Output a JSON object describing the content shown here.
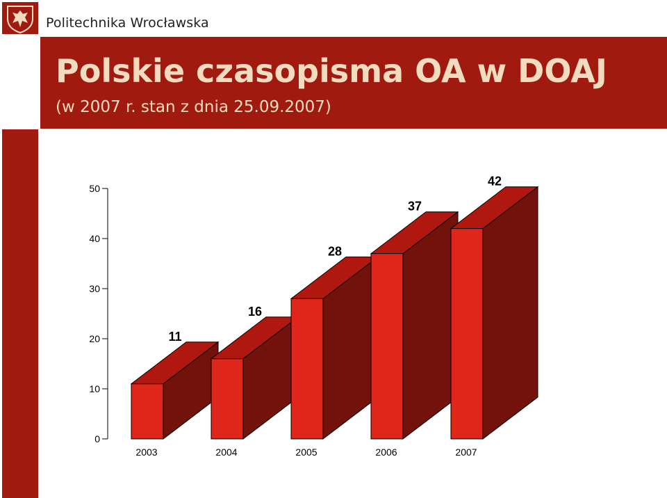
{
  "header": {
    "brand": "Politechnika Wrocławska",
    "title": "Polskie czasopisma OA w DOAJ",
    "subtitle": "(w 2007 r. stan z dnia 25.09.2007)"
  },
  "colors": {
    "brand_red": "#a01a10",
    "title_text": "#f2dcc0",
    "bar_front": "#e0261a",
    "bar_top": "#b0180f",
    "bar_side": "#72120b"
  },
  "chart_data": {
    "type": "bar",
    "style": "3d",
    "categories": [
      "2003",
      "2004",
      "2005",
      "2006",
      "2007"
    ],
    "values": [
      11,
      16,
      28,
      37,
      42
    ],
    "data_labels": [
      "11",
      "16",
      "28",
      "37",
      "42"
    ],
    "y_ticks": [
      "50",
      "40",
      "30",
      "20",
      "10",
      "0"
    ],
    "ylim": [
      0,
      50
    ],
    "grid": false,
    "legend": "none"
  }
}
